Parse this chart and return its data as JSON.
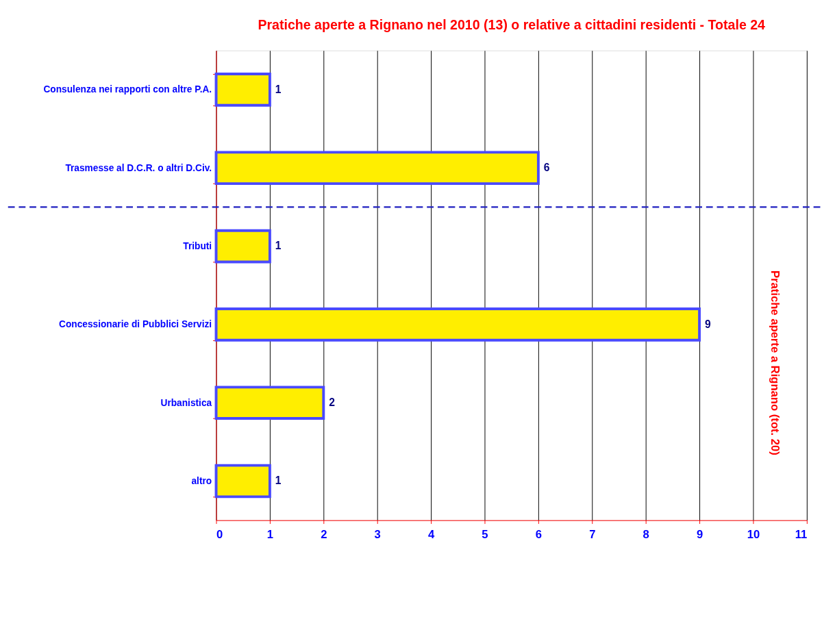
{
  "chart_data": {
    "type": "bar",
    "orientation": "horizontal",
    "title": "Pratiche aperte a Rignano nel 2010 (13) o relative a cittadini residenti - Totale 24",
    "categories": [
      "Consulenza nei rapporti con altre P.A.",
      "Trasmesse al D.C.R. o altri D.Civ.",
      "Tributi",
      "Concessionarie di Pubblici Servizi",
      "Urbanistica",
      "altro"
    ],
    "values": [
      1,
      6,
      1,
      9,
      2,
      1
    ],
    "color": "#ffee00",
    "xlim": [
      0,
      11
    ],
    "xticks": [
      0,
      1,
      2,
      3,
      4,
      5,
      6,
      7,
      8,
      9,
      10,
      11
    ],
    "grid": "x",
    "data_labels": true,
    "ref_lines": [
      {
        "axis": "y",
        "value": "Trasmesse al D.C.R. o altri D.Civ.",
        "color": "#2020c0",
        "line_style": "dashed"
      }
    ],
    "annotations": [
      "Pratiche aperte a Rignano (tot. 20)"
    ]
  }
}
